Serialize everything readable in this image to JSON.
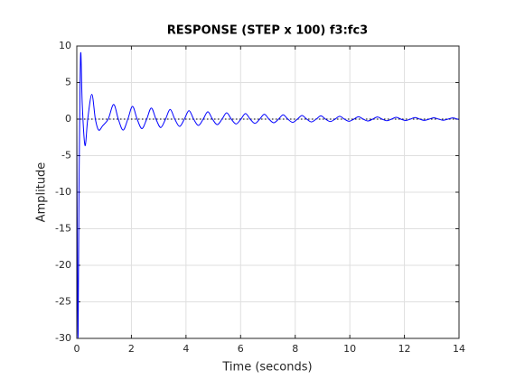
{
  "chart_data": {
    "type": "line",
    "title": "RESPONSE (STEP x 100) f3:fc3",
    "xlabel": "Time (seconds)",
    "ylabel": "Amplitude",
    "xlim": [
      0,
      14
    ],
    "ylim": [
      -30,
      10
    ],
    "xticks": [
      0,
      2,
      4,
      6,
      8,
      10,
      12,
      14
    ],
    "yticks": [
      -30,
      -25,
      -20,
      -15,
      -10,
      -5,
      0,
      5,
      10
    ],
    "grid": true,
    "series": [
      {
        "color": "#0000ff",
        "style": "solid",
        "x": [
          0,
          0.03,
          0.05,
          0.08,
          0.12,
          0.15,
          0.2,
          0.3,
          0.4,
          0.55,
          0.68,
          0.8,
          0.95,
          1.15,
          1.35,
          1.52,
          1.695,
          1.87,
          2.04,
          2.21,
          2.385,
          2.56,
          2.73,
          2.9,
          3.075,
          3.25,
          3.42,
          3.59,
          3.765,
          3.94,
          4.11,
          4.28,
          4.455,
          4.63,
          4.8,
          4.97,
          5.145,
          5.32,
          5.49,
          5.66,
          5.835,
          6.01,
          6.18,
          6.35,
          6.525,
          6.7,
          6.87,
          7.04,
          7.215,
          7.39,
          7.56,
          7.73,
          7.905,
          8.08,
          8.25,
          8.42,
          8.595,
          8.77,
          8.94,
          9.11,
          9.285,
          9.46,
          9.63,
          9.8,
          9.975,
          10.15,
          10.32,
          10.49,
          10.665,
          10.84,
          11.01,
          11.18,
          11.355,
          11.53,
          11.7,
          11.87,
          12.045,
          12.22,
          12.39,
          12.56,
          12.735,
          12.91,
          13.08,
          13.25,
          13.425,
          13.6,
          13.77,
          13.94,
          14
        ],
        "values": [
          0,
          -24,
          -29,
          -10,
          5,
          9,
          2,
          -3.6,
          0,
          3.4,
          0,
          -1.5,
          -0.9,
          0,
          2.0,
          0,
          -1.5,
          0,
          1.74,
          0,
          -1.3,
          0,
          1.52,
          0,
          -1.15,
          0,
          1.32,
          0,
          -1.0,
          0,
          1.15,
          0,
          -0.87,
          0,
          1.0,
          0,
          -0.76,
          0,
          0.87,
          0,
          -0.66,
          0,
          0.76,
          0,
          -0.58,
          0,
          0.66,
          0,
          -0.5,
          0,
          0.58,
          0,
          -0.44,
          0,
          0.5,
          0,
          -0.38,
          0,
          0.44,
          0,
          -0.33,
          0,
          0.38,
          0,
          -0.29,
          0,
          0.33,
          0,
          -0.25,
          0,
          0.29,
          0,
          -0.22,
          0,
          0.25,
          0,
          -0.19,
          0,
          0.22,
          0,
          -0.17,
          0,
          0.19,
          0,
          -0.15,
          0,
          0.17,
          0,
          -0.05
        ]
      },
      {
        "color": "#000000",
        "style": "dotted",
        "x": [
          0,
          14
        ],
        "values": [
          0,
          0
        ]
      }
    ]
  }
}
